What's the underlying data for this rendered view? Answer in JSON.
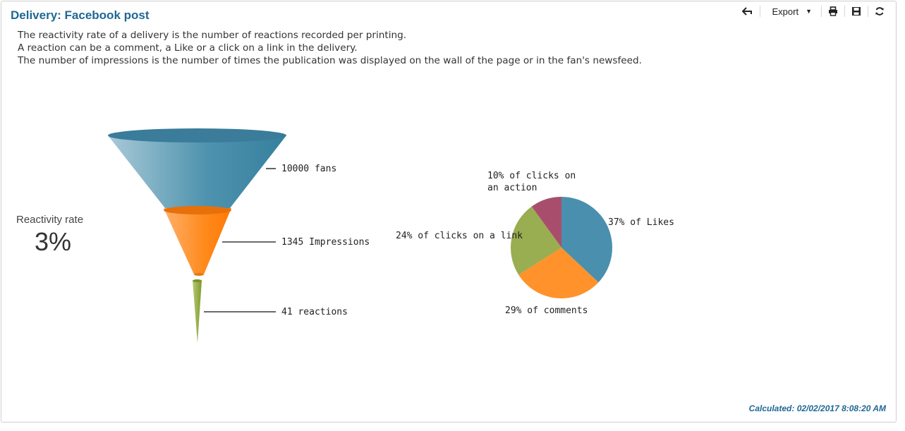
{
  "header": {
    "title": "Delivery: Facebook post"
  },
  "toolbar": {
    "back_icon": "back-arrow-icon",
    "export_label": "Export",
    "print_icon": "printer-icon",
    "save_icon": "floppy-disk-icon",
    "refresh_icon": "refresh-icon"
  },
  "description": {
    "line1": "The reactivity rate of a delivery is the number of reactions recorded per printing.",
    "line2": "A reaction can be a comment, a Like or a click on a link in the delivery.",
    "line3": "The number of impressions is the number of times the publication was displayed on the wall of the page or in the fan's newsfeed."
  },
  "kpi": {
    "label": "Reactivity rate",
    "value": "3%"
  },
  "footer": {
    "calculated": "Calculated: 02/02/2017 8:08:20 AM"
  },
  "chart_data": [
    {
      "type": "funnel",
      "stages": [
        {
          "label": "10000 fans",
          "value": 10000,
          "color": "#3c88a4"
        },
        {
          "label": "1345 Impressions",
          "value": 1345,
          "color": "#ff8a1c"
        },
        {
          "label": "41 reactions",
          "value": 41,
          "color": "#8fa83c"
        }
      ]
    },
    {
      "type": "pie",
      "slices": [
        {
          "label": "37% of Likes",
          "value": 37,
          "color": "#4a8fae"
        },
        {
          "label": "29% of comments",
          "value": 29,
          "color": "#ff922b"
        },
        {
          "label": "24% of clicks on a link",
          "value": 24,
          "color": "#99ad51"
        },
        {
          "label_lines": [
            "10% of clicks on",
            "an action"
          ],
          "value": 10,
          "color": "#a84e6c"
        }
      ]
    }
  ]
}
